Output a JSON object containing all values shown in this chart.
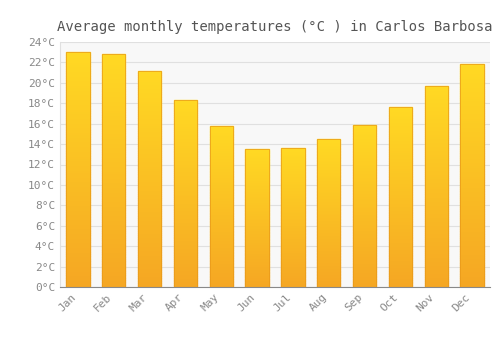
{
  "title": "Average monthly temperatures (°C ) in Carlos Barbosa",
  "months": [
    "Jan",
    "Feb",
    "Mar",
    "Apr",
    "May",
    "Jun",
    "Jul",
    "Aug",
    "Sep",
    "Oct",
    "Nov",
    "Dec"
  ],
  "values": [
    23.0,
    22.8,
    21.2,
    18.3,
    15.8,
    13.5,
    13.6,
    14.5,
    15.9,
    17.6,
    19.7,
    21.8
  ],
  "bar_color_bottom": "#F5A623",
  "bar_color_top": "#FFD966",
  "bar_edge_color": "#E8981A",
  "background_color": "#FFFFFF",
  "plot_bg_color": "#F8F8F8",
  "grid_color": "#E0E0E0",
  "text_color": "#888888",
  "title_color": "#555555",
  "ylim": [
    0,
    24
  ],
  "ytick_step": 2,
  "title_fontsize": 10,
  "tick_fontsize": 8,
  "bar_width": 0.65
}
